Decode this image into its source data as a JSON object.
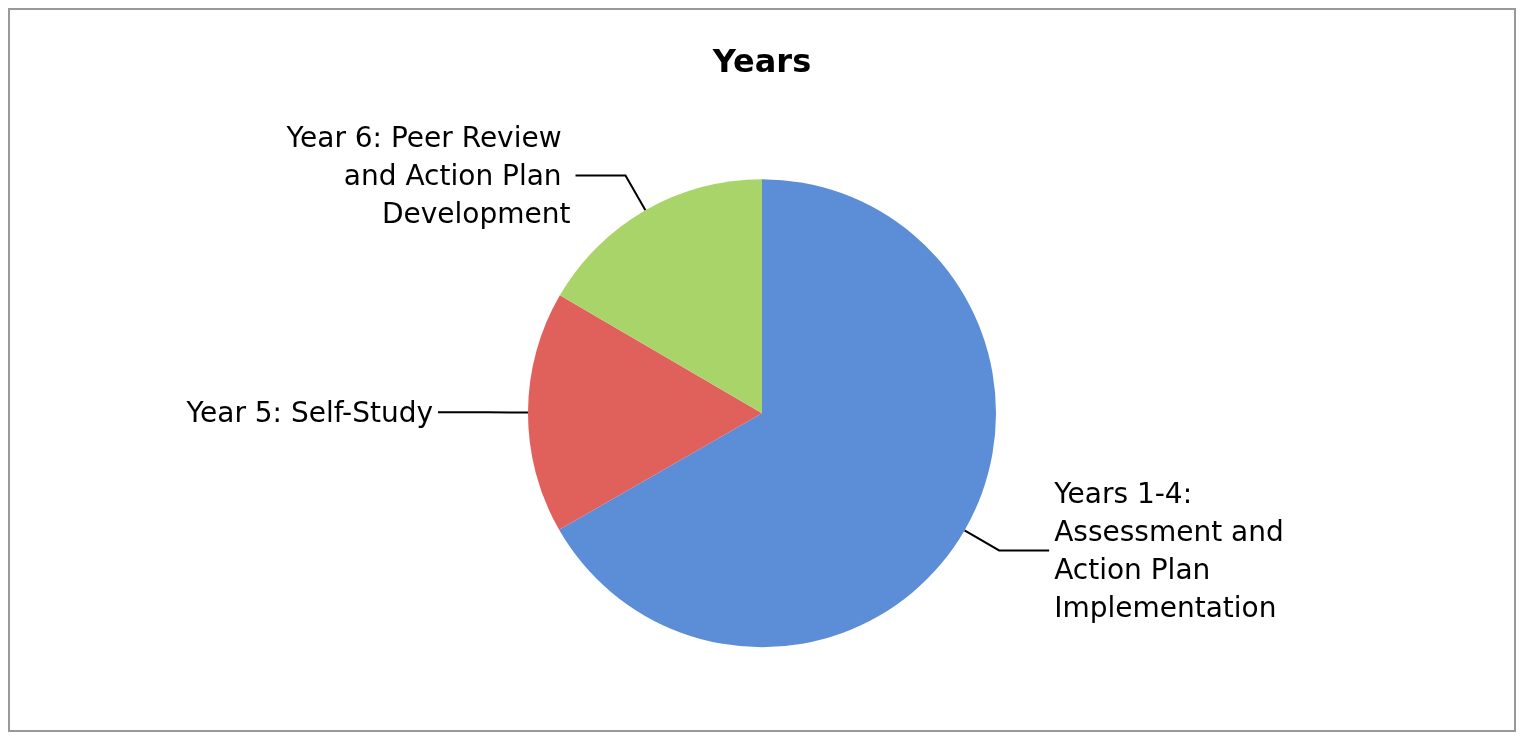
{
  "chart_data": {
    "type": "pie",
    "title": "Years",
    "categories": [
      "Years 1-4: Assessment and Action Plan Implementation",
      "Year 5: Self-Study",
      "Year 6: Peer Review and Action Plan Development"
    ],
    "values": [
      66.7,
      16.7,
      16.6
    ],
    "colors": [
      "#5b8ed6",
      "#e0605c",
      "#a9d46a"
    ],
    "legend": false
  }
}
